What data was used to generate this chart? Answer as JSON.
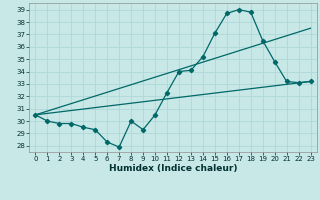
{
  "title": "",
  "xlabel": "Humidex (Indice chaleur)",
  "ylabel": "",
  "bg_color": "#c8e8e8",
  "grid_color": "#b0d8d8",
  "line_color": "#006868",
  "xlim": [
    -0.5,
    23.5
  ],
  "ylim": [
    27.5,
    39.5
  ],
  "xticks": [
    0,
    1,
    2,
    3,
    4,
    5,
    6,
    7,
    8,
    9,
    10,
    11,
    12,
    13,
    14,
    15,
    16,
    17,
    18,
    19,
    20,
    21,
    22,
    23
  ],
  "yticks": [
    28,
    29,
    30,
    31,
    32,
    33,
    34,
    35,
    36,
    37,
    38,
    39
  ],
  "line1_x": [
    0,
    1,
    2,
    3,
    4,
    5,
    6,
    7,
    8,
    9,
    10,
    11,
    12,
    13,
    14,
    15,
    16,
    17,
    18,
    19,
    20,
    21,
    22,
    23
  ],
  "line1_y": [
    30.5,
    30.0,
    29.8,
    29.8,
    29.5,
    29.3,
    28.3,
    27.9,
    30.0,
    29.3,
    30.5,
    32.3,
    34.0,
    34.1,
    35.2,
    37.1,
    38.7,
    39.0,
    38.8,
    36.5,
    34.8,
    33.2,
    33.1,
    33.2
  ],
  "line2_x": [
    0,
    23
  ],
  "line2_y": [
    30.5,
    37.5
  ],
  "line3_x": [
    0,
    23
  ],
  "line3_y": [
    30.5,
    33.2
  ],
  "figsize": [
    3.2,
    2.0
  ],
  "dpi": 100,
  "xlabel_fontsize": 6.5,
  "tick_fontsize": 5.0
}
